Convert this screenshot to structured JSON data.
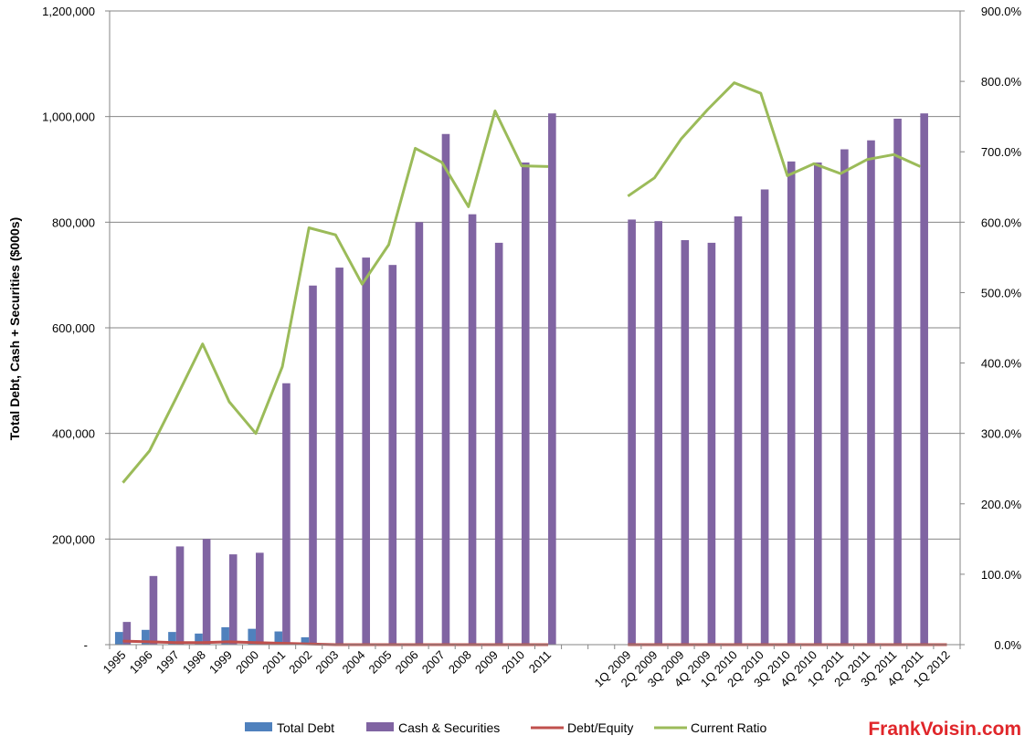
{
  "chart_data": {
    "type": "bar",
    "title": "",
    "xlabel": "",
    "ylabel": "Total Debt, Cash + Securities ($000s)",
    "y_left": {
      "min": 0,
      "max": 1200000,
      "ticks": [
        0,
        200000,
        400000,
        600000,
        800000,
        1000000,
        1200000
      ],
      "tick_labels": [
        "-",
        "200,000",
        "400,000",
        "600,000",
        "800,000",
        "1,000,000",
        "1,200,000"
      ]
    },
    "y_right": {
      "min": 0,
      "max": 9.0,
      "ticks": [
        0,
        1,
        2,
        3,
        4,
        5,
        6,
        7,
        8,
        9
      ],
      "tick_labels": [
        "0.0%",
        "100.0%",
        "200.0%",
        "300.0%",
        "400.0%",
        "500.0%",
        "600.0%",
        "700.0%",
        "800.0%",
        "900.0%"
      ]
    },
    "grid": true,
    "categories": [
      "1995",
      "1996",
      "1997",
      "1998",
      "1999",
      "2000",
      "2001",
      "2002",
      "2003",
      "2004",
      "2005",
      "2006",
      "2007",
      "2008",
      "2009",
      "2010",
      "2011",
      "",
      "",
      "1Q 2009",
      "2Q 2009",
      "3Q 2009",
      "4Q 2009",
      "1Q 2010",
      "2Q 2010",
      "3Q 2010",
      "4Q 2010",
      "1Q 2011",
      "2Q 2011",
      "3Q 2011",
      "4Q 2011",
      "1Q 2012"
    ],
    "series": [
      {
        "name": "Total Debt",
        "type": "bar",
        "axis": "left",
        "color": "#4f81bd",
        "values": [
          24000,
          28000,
          24000,
          21000,
          33000,
          30000,
          25000,
          14000,
          0,
          0,
          0,
          0,
          0,
          0,
          0,
          0,
          0,
          null,
          null,
          0,
          0,
          0,
          0,
          0,
          0,
          0,
          0,
          0,
          0,
          0,
          0,
          0
        ]
      },
      {
        "name": "Cash & Securities",
        "type": "bar",
        "axis": "left",
        "color": "#8064a2",
        "values": [
          43000,
          130000,
          186000,
          200000,
          171000,
          174000,
          495000,
          680000,
          714000,
          733000,
          719000,
          800000,
          967000,
          815000,
          761000,
          913000,
          1006000,
          null,
          null,
          805000,
          802000,
          766000,
          761000,
          811000,
          862000,
          915000,
          913000,
          938000,
          955000,
          996000,
          1006000,
          null
        ]
      },
      {
        "name": "Debt/Equity",
        "type": "line",
        "axis": "right",
        "color": "#c0504d",
        "values": [
          0.05,
          0.04,
          0.03,
          0.03,
          0.04,
          0.03,
          0.02,
          0.01,
          0,
          0,
          0,
          0,
          0,
          0,
          0,
          0,
          0,
          null,
          null,
          0,
          0,
          0,
          0,
          0,
          0,
          0,
          0,
          0,
          0,
          0,
          0,
          0
        ]
      },
      {
        "name": "Current Ratio",
        "type": "line",
        "axis": "right",
        "color": "#9bbb59",
        "values": [
          2.3,
          2.75,
          3.5,
          4.27,
          3.45,
          3.0,
          3.95,
          5.92,
          5.82,
          5.12,
          5.68,
          7.05,
          6.85,
          6.22,
          7.58,
          6.8,
          6.79,
          null,
          null,
          6.37,
          6.63,
          7.18,
          7.6,
          7.98,
          7.83,
          6.66,
          6.83,
          6.69,
          6.89,
          6.96,
          6.79,
          null
        ]
      }
    ],
    "legend": {
      "position": "bottom",
      "entries": [
        "Total Debt",
        "Cash & Securities",
        "Debt/Equity",
        "Current Ratio"
      ]
    },
    "watermark": "FrankVoisin.com"
  }
}
